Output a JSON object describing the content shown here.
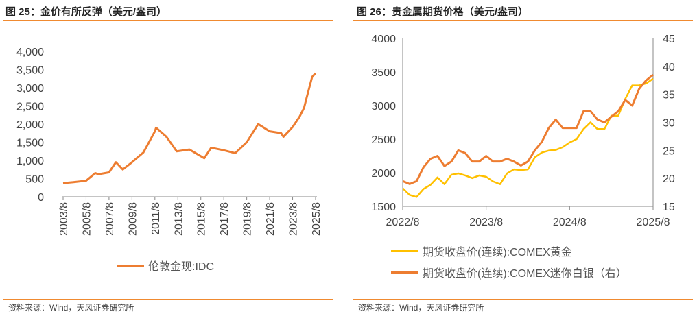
{
  "left": {
    "title": "图 25：金价有所反弹（美元/盎司）",
    "source": "资料来源：Wind，天风证券研究所"
  },
  "right": {
    "title": "图 26：贵金属期货价格（美元/盎司）",
    "source": "资料来源：Wind，天风证券研究所"
  },
  "colors": {
    "orange": "#ed7d31",
    "gold": "#ffc000",
    "rule": "#f08a30"
  },
  "chart_data": [
    {
      "type": "line",
      "title": "金价有所反弹（美元/盎司）",
      "ylim": [
        0,
        4000
      ],
      "yticks": [
        "0",
        "500",
        "1,000",
        "1,500",
        "2,000",
        "2,500",
        "3,000",
        "3,500",
        "4,000"
      ],
      "xticks": [
        "2003/8",
        "2005/8",
        "2007/8",
        "2009/8",
        "2011/8",
        "2013/8",
        "2015/8",
        "2017/8",
        "2019/8",
        "2021/8",
        "2023/8",
        "2025/8"
      ],
      "series": [
        {
          "name": "伦敦金现:IDC",
          "color": "#ed7d31",
          "x": [
            2003.6,
            2004.5,
            2005.6,
            2006.4,
            2006.7,
            2007.6,
            2008.2,
            2008.8,
            2009.6,
            2010.6,
            2011.6,
            2011.7,
            2012.6,
            2013.5,
            2014.6,
            2015.9,
            2016.5,
            2017.6,
            2018.6,
            2019.6,
            2020.6,
            2021.6,
            2022.6,
            2022.8,
            2023.6,
            2024.2,
            2024.6,
            2024.8,
            2025.3,
            2025.6
          ],
          "y": [
            375,
            400,
            440,
            650,
            620,
            670,
            950,
            750,
            950,
            1220,
            1800,
            1900,
            1650,
            1250,
            1300,
            1060,
            1350,
            1280,
            1200,
            1500,
            2000,
            1800,
            1750,
            1650,
            1920,
            2200,
            2450,
            2700,
            3300,
            3400
          ]
        }
      ]
    },
    {
      "type": "line",
      "title": "贵金属期货价格（美元/盎司）",
      "ylim": [
        1500,
        4000
      ],
      "y2lim": [
        15,
        45
      ],
      "yticks": [
        "1500",
        "2000",
        "2500",
        "3000",
        "3500",
        "4000"
      ],
      "y2ticks": [
        "15",
        "20",
        "25",
        "30",
        "35",
        "40",
        "45"
      ],
      "xticks": [
        "2022/8",
        "2023/8",
        "2024/8",
        "2025/8"
      ],
      "series": [
        {
          "name": "期货收盘价(连续):COMEX黄金",
          "color": "#ffc000",
          "axis": "left",
          "y": [
            1770,
            1670,
            1640,
            1760,
            1820,
            1930,
            1830,
            1970,
            1990,
            1960,
            1920,
            1960,
            1940,
            1870,
            1830,
            1990,
            2050,
            2040,
            2050,
            2230,
            2300,
            2330,
            2340,
            2380,
            2450,
            2500,
            2650,
            2750,
            2650,
            2650,
            2850,
            2850,
            3100,
            3300,
            3300,
            3330,
            3400
          ]
        },
        {
          "name": "期货收盘价(连续):COMEX迷你白银（右）",
          "color": "#ed7d31",
          "axis": "right",
          "y": [
            19.5,
            19,
            19.5,
            22,
            23.5,
            24,
            22.2,
            23,
            25,
            24.5,
            23,
            23,
            24,
            23,
            23,
            23.5,
            23,
            22.3,
            23,
            25,
            26.5,
            29,
            30.5,
            29,
            29,
            29,
            32,
            32,
            30.5,
            30,
            31,
            32,
            34,
            33,
            36,
            37.5,
            38.5
          ]
        }
      ]
    }
  ]
}
